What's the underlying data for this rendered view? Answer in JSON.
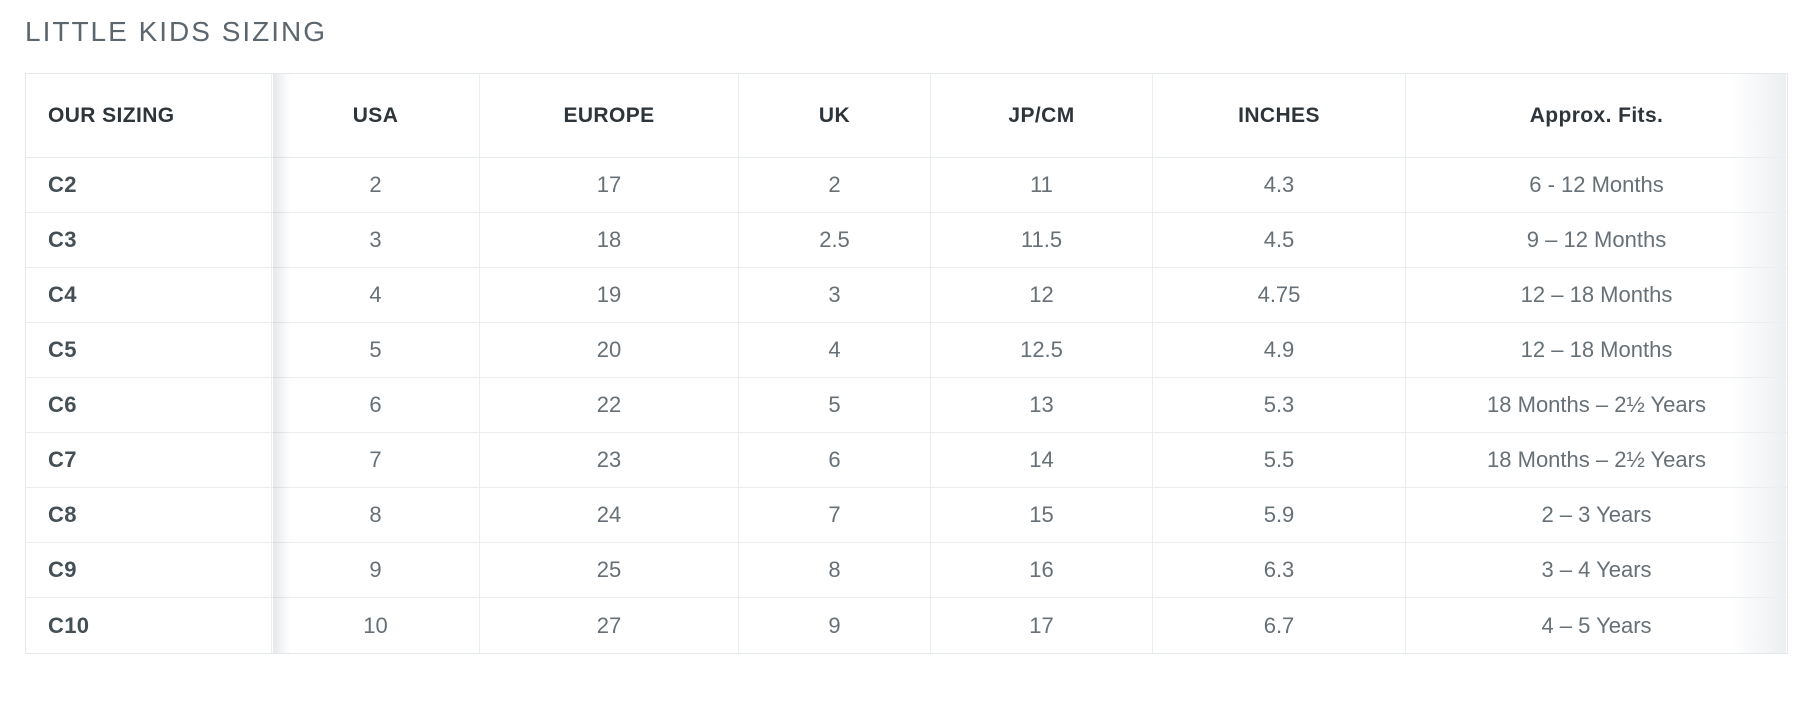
{
  "page": {
    "title": "LITTLE KIDS SIZING"
  },
  "table": {
    "columns": [
      {
        "id": "our_sizing",
        "label": "OUR SIZING",
        "align": "left"
      },
      {
        "id": "usa",
        "label": "USA",
        "align": "center"
      },
      {
        "id": "europe",
        "label": "EUROPE",
        "align": "center"
      },
      {
        "id": "uk",
        "label": "UK",
        "align": "center"
      },
      {
        "id": "jp_cm",
        "label": "JP/CM",
        "align": "center"
      },
      {
        "id": "inches",
        "label": "INCHES",
        "align": "center"
      },
      {
        "id": "fits",
        "label": "Approx. Fits.",
        "align": "center"
      }
    ],
    "rows": [
      {
        "our_sizing": "C2",
        "usa": "2",
        "europe": "17",
        "uk": "2",
        "jp_cm": "11",
        "inches": "4.3",
        "fits": "6 - 12 Months"
      },
      {
        "our_sizing": "C3",
        "usa": "3",
        "europe": "18",
        "uk": "2.5",
        "jp_cm": "11.5",
        "inches": "4.5",
        "fits": "9 – 12 Months"
      },
      {
        "our_sizing": "C4",
        "usa": "4",
        "europe": "19",
        "uk": "3",
        "jp_cm": "12",
        "inches": "4.75",
        "fits": "12 – 18 Months"
      },
      {
        "our_sizing": "C5",
        "usa": "5",
        "europe": "20",
        "uk": "4",
        "jp_cm": "12.5",
        "inches": "4.9",
        "fits": "12 – 18 Months"
      },
      {
        "our_sizing": "C6",
        "usa": "6",
        "europe": "22",
        "uk": "5",
        "jp_cm": "13",
        "inches": "5.3",
        "fits": "18 Months – 2½ Years"
      },
      {
        "our_sizing": "C7",
        "usa": "7",
        "europe": "23",
        "uk": "6",
        "jp_cm": "14",
        "inches": "5.5",
        "fits": "18 Months – 2½ Years"
      },
      {
        "our_sizing": "C8",
        "usa": "8",
        "europe": "24",
        "uk": "7",
        "jp_cm": "15",
        "inches": "5.9",
        "fits": "2 – 3 Years"
      },
      {
        "our_sizing": "C9",
        "usa": "9",
        "europe": "25",
        "uk": "8",
        "jp_cm": "16",
        "inches": "6.3",
        "fits": "3 – 4 Years"
      },
      {
        "our_sizing": "C10",
        "usa": "10",
        "europe": "27",
        "uk": "9",
        "jp_cm": "17",
        "inches": "6.7",
        "fits": "4 – 5 Years"
      }
    ]
  },
  "colors": {
    "title_text": "#5c666e",
    "header_text": "#2e353a",
    "row_label_text": "#454f56",
    "cell_text": "#677077",
    "grid_line": "#e9edf0",
    "outer_border": "#e3e8eb",
    "background": "#ffffff"
  }
}
